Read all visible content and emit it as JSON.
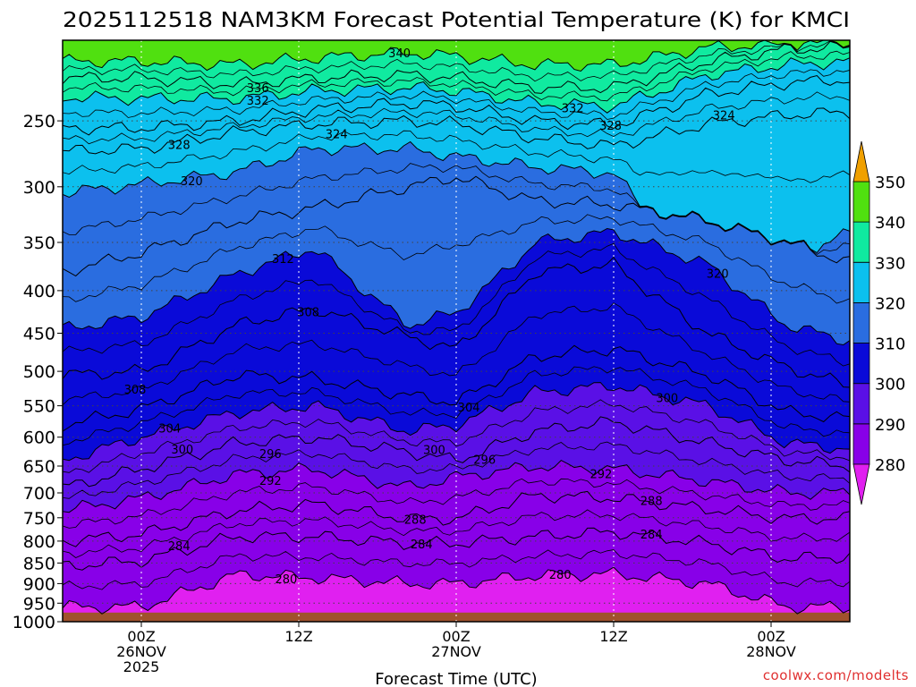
{
  "chart_data": {
    "type": "heatmap",
    "title": "2025112518 NAM3KM Forecast Potential Temperature (K) for KMCI",
    "xlabel": "Forecast Time (UTC)",
    "ylabel": "",
    "watermark": "coolwx.com/modelts",
    "y_scale": "log-pressure",
    "ylim": [
      1000,
      200
    ],
    "y_ticks": [
      250,
      300,
      350,
      400,
      450,
      500,
      550,
      600,
      650,
      700,
      750,
      800,
      850,
      900,
      950,
      1000
    ],
    "xlim": [
      -0.25,
      2.25
    ],
    "x_ticks": [
      {
        "value": 0.0,
        "lines": [
          "00Z",
          "26NOV",
          "2025"
        ]
      },
      {
        "value": 0.5,
        "lines": [
          "12Z"
        ]
      },
      {
        "value": 1.0,
        "lines": [
          "00Z",
          "27NOV"
        ]
      },
      {
        "value": 1.5,
        "lines": [
          "12Z"
        ]
      },
      {
        "value": 2.0,
        "lines": [
          "00Z",
          "28NOV"
        ]
      }
    ],
    "x_unit": "days from 00Z 26NOV 2025",
    "colorbar": {
      "levels": [
        280,
        290,
        300,
        310,
        320,
        330,
        340,
        350
      ],
      "colors": [
        "#8800e8",
        "#5a10e6",
        "#0a0ad8",
        "#2a6de0",
        "#0cc0ee",
        "#10eaa0",
        "#50e010",
        "#f0f000"
      ],
      "under_color": "#e020f0",
      "over_color": "#f0a000",
      "extend": "both"
    },
    "ground_color": "#a0522d",
    "ground_pressure": 975,
    "contour_interval": 4,
    "contour_labels": [
      {
        "x": 0.82,
        "p": 207,
        "text": "340"
      },
      {
        "x": 0.37,
        "p": 228,
        "text": "336"
      },
      {
        "x": 0.37,
        "p": 236,
        "text": "332"
      },
      {
        "x": 1.37,
        "p": 241,
        "text": "332"
      },
      {
        "x": 1.49,
        "p": 253,
        "text": "328"
      },
      {
        "x": 0.12,
        "p": 267,
        "text": "328"
      },
      {
        "x": 0.62,
        "p": 259,
        "text": "324"
      },
      {
        "x": 1.85,
        "p": 246,
        "text": "324"
      },
      {
        "x": 0.16,
        "p": 295,
        "text": "320"
      },
      {
        "x": 1.83,
        "p": 381,
        "text": "320"
      },
      {
        "x": 0.45,
        "p": 366,
        "text": "312"
      },
      {
        "x": 0.53,
        "p": 424,
        "text": "308"
      },
      {
        "x": -0.02,
        "p": 525,
        "text": "308"
      },
      {
        "x": 1.04,
        "p": 552,
        "text": "304"
      },
      {
        "x": 0.09,
        "p": 585,
        "text": "304"
      },
      {
        "x": 0.13,
        "p": 620,
        "text": "300"
      },
      {
        "x": 0.93,
        "p": 621,
        "text": "300"
      },
      {
        "x": 1.67,
        "p": 538,
        "text": "300"
      },
      {
        "x": 0.41,
        "p": 628,
        "text": "296"
      },
      {
        "x": 1.09,
        "p": 638,
        "text": "296"
      },
      {
        "x": 0.41,
        "p": 676,
        "text": "292"
      },
      {
        "x": 1.46,
        "p": 664,
        "text": "292"
      },
      {
        "x": 1.62,
        "p": 715,
        "text": "288"
      },
      {
        "x": 0.87,
        "p": 753,
        "text": "288"
      },
      {
        "x": 0.89,
        "p": 806,
        "text": "284"
      },
      {
        "x": 1.62,
        "p": 785,
        "text": "284"
      },
      {
        "x": 0.12,
        "p": 810,
        "text": "284"
      },
      {
        "x": 0.46,
        "p": 888,
        "text": "280"
      },
      {
        "x": 1.33,
        "p": 877,
        "text": "280"
      }
    ],
    "isentrope_pressures": {
      "x": [
        -0.25,
        0.0,
        0.3,
        0.55,
        0.85,
        1.0,
        1.25,
        1.5,
        1.8,
        2.05,
        2.25
      ],
      "levels": [
        {
          "theta": 280,
          "p": [
            960,
            960,
            878,
            885,
            900,
            900,
            880,
            876,
            900,
            960,
            960
          ]
        },
        {
          "theta": 284,
          "p": [
            858,
            845,
            790,
            790,
            805,
            805,
            790,
            780,
            805,
            840,
            835
          ]
        },
        {
          "theta": 288,
          "p": [
            800,
            785,
            735,
            722,
            752,
            752,
            705,
            710,
            732,
            752,
            750
          ]
        },
        {
          "theta": 292,
          "p": [
            735,
            710,
            665,
            655,
            690,
            670,
            650,
            655,
            678,
            700,
            700
          ]
        },
        {
          "theta": 296,
          "p": [
            690,
            655,
            610,
            600,
            625,
            640,
            590,
            575,
            610,
            640,
            650
          ]
        },
        {
          "theta": 300,
          "p": [
            640,
            600,
            560,
            550,
            590,
            580,
            530,
            520,
            550,
            610,
            620
          ]
        },
        {
          "theta": 304,
          "p": [
            580,
            555,
            505,
            510,
            535,
            545,
            480,
            470,
            505,
            560,
            570
          ]
        },
        {
          "theta": 308,
          "p": [
            505,
            500,
            440,
            420,
            455,
            470,
            380,
            372,
            450,
            495,
            520
          ]
        },
        {
          "theta": 312,
          "p": [
            445,
            430,
            382,
            355,
            440,
            425,
            350,
            340,
            372,
            440,
            460
          ]
        },
        {
          "theta": 316,
          "p": [
            380,
            360,
            330,
            318,
            300,
            292,
            312,
            315,
            330,
            350,
            370
          ]
        },
        {
          "theta": 320,
          "p": [
            305,
            298,
            288,
            270,
            270,
            276,
            284,
            289,
            380,
            372,
            340
          ]
        },
        {
          "theta": 324,
          "p": [
            272,
            270,
            258,
            252,
            250,
            252,
            262,
            268,
            252,
            246,
            244
          ]
        },
        {
          "theta": 328,
          "p": [
            255,
            255,
            250,
            242,
            238,
            240,
            250,
            253,
            232,
            225,
            223
          ]
        },
        {
          "theta": 332,
          "p": [
            234,
            235,
            235,
            230,
            228,
            230,
            238,
            240,
            220,
            214,
            212
          ]
        },
        {
          "theta": 336,
          "p": [
            222,
            222,
            226,
            222,
            220,
            222,
            228,
            228,
            212,
            205,
            204
          ]
        },
        {
          "theta": 340,
          "p": [
            212,
            212,
            214,
            210,
            207,
            209,
            214,
            214,
            204,
            202,
            202
          ]
        }
      ]
    }
  }
}
